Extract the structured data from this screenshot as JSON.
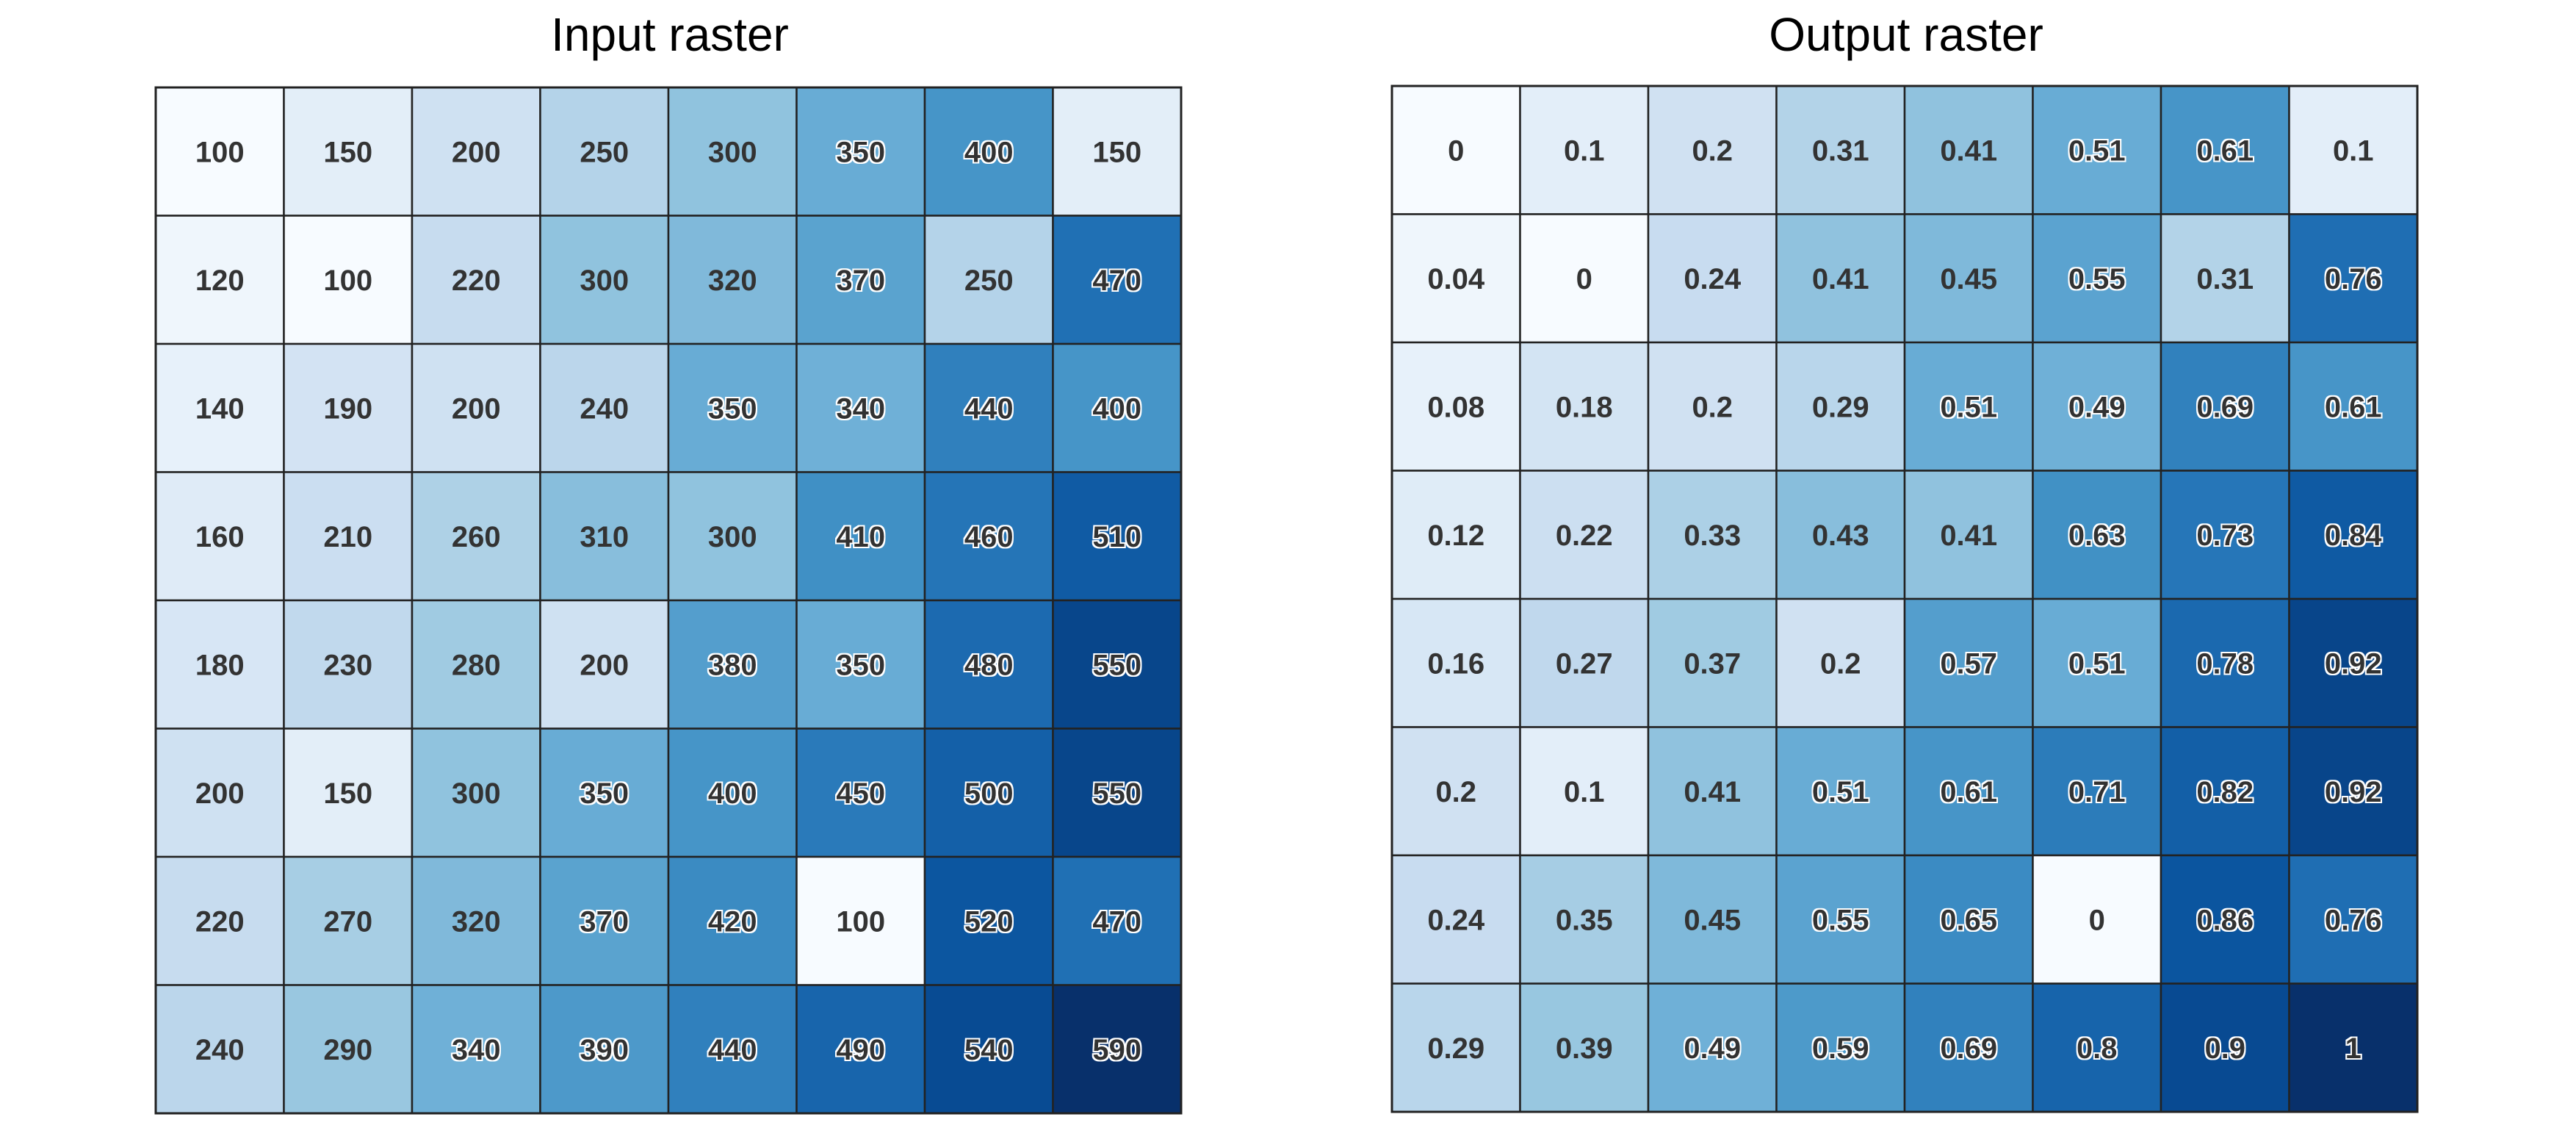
{
  "chart_data": [
    {
      "type": "heatmap",
      "title": "Input raster",
      "colormap": "Blues",
      "vmin": 100,
      "vmax": 590,
      "values": [
        [
          "100",
          "150",
          "200",
          "250",
          "300",
          "350",
          "400",
          "150"
        ],
        [
          "120",
          "100",
          "220",
          "300",
          "320",
          "370",
          "250",
          "470"
        ],
        [
          "140",
          "190",
          "200",
          "240",
          "350",
          "340",
          "440",
          "400"
        ],
        [
          "160",
          "210",
          "260",
          "310",
          "300",
          "410",
          "460",
          "510"
        ],
        [
          "180",
          "230",
          "280",
          "200",
          "380",
          "350",
          "480",
          "550"
        ],
        [
          "200",
          "150",
          "300",
          "350",
          "400",
          "450",
          "500",
          "550"
        ],
        [
          "220",
          "270",
          "320",
          "370",
          "420",
          "100",
          "520",
          "470"
        ],
        [
          "240",
          "290",
          "340",
          "390",
          "440",
          "490",
          "540",
          "590"
        ]
      ]
    },
    {
      "type": "heatmap",
      "title": "Output raster",
      "colormap": "Blues",
      "vmin": 0,
      "vmax": 1,
      "values": [
        [
          "0",
          "0.1",
          "0.2",
          "0.31",
          "0.41",
          "0.51",
          "0.61",
          "0.1"
        ],
        [
          "0.04",
          "0",
          "0.24",
          "0.41",
          "0.45",
          "0.55",
          "0.31",
          "0.76"
        ],
        [
          "0.08",
          "0.18",
          "0.2",
          "0.29",
          "0.51",
          "0.49",
          "0.69",
          "0.61"
        ],
        [
          "0.12",
          "0.22",
          "0.33",
          "0.43",
          "0.41",
          "0.63",
          "0.73",
          "0.84"
        ],
        [
          "0.16",
          "0.27",
          "0.37",
          "0.2",
          "0.57",
          "0.51",
          "0.78",
          "0.92"
        ],
        [
          "0.2",
          "0.1",
          "0.41",
          "0.51",
          "0.61",
          "0.71",
          "0.82",
          "0.92"
        ],
        [
          "0.24",
          "0.35",
          "0.45",
          "0.55",
          "0.65",
          "0",
          "0.86",
          "0.76"
        ],
        [
          "0.29",
          "0.39",
          "0.49",
          "0.59",
          "0.69",
          "0.8",
          "0.9",
          "1"
        ]
      ]
    }
  ]
}
